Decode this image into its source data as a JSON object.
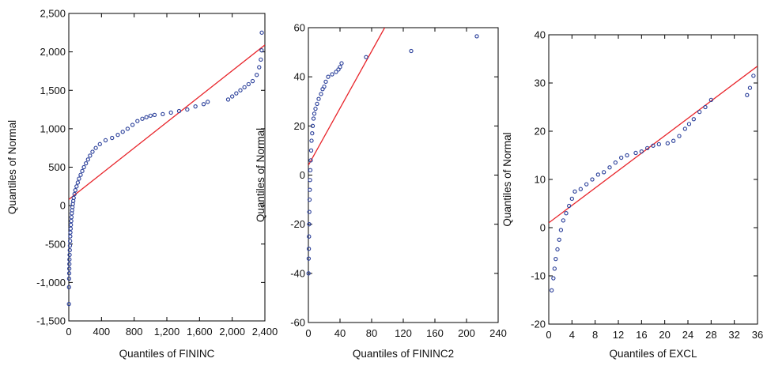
{
  "chart_data": [
    {
      "type": "scatter",
      "title": "",
      "xlabel": "Quantiles of FININC",
      "ylabel": "Quantiles of Normal",
      "xlim": [
        0,
        2400
      ],
      "ylim": [
        -1500,
        2500
      ],
      "xticks": [
        "0",
        "400",
        "800",
        "1,200",
        "1,600",
        "2,000",
        "2,400"
      ],
      "xtick_values": [
        0,
        400,
        800,
        1200,
        1600,
        2000,
        2400
      ],
      "yticks": [
        "-1,500",
        "-1,000",
        "-500",
        "0",
        "500",
        "1,000",
        "1,500",
        "2,000",
        "2,500"
      ],
      "ytick_values": [
        -1500,
        -1000,
        -500,
        0,
        500,
        1000,
        1500,
        2000,
        2500
      ],
      "point_color": "#2a3f9a",
      "line_color": "#e8242a",
      "reference_line": [
        [
          0,
          80
        ],
        [
          2400,
          2090
        ]
      ],
      "points": [
        [
          2,
          -1280
        ],
        [
          3,
          -1060
        ],
        [
          4,
          -950
        ],
        [
          5,
          -880
        ],
        [
          6,
          -820
        ],
        [
          7,
          -760
        ],
        [
          8,
          -700
        ],
        [
          10,
          -640
        ],
        [
          12,
          -580
        ],
        [
          14,
          -520
        ],
        [
          16,
          -460
        ],
        [
          18,
          -400
        ],
        [
          20,
          -350
        ],
        [
          23,
          -300
        ],
        [
          26,
          -250
        ],
        [
          30,
          -200
        ],
        [
          33,
          -150
        ],
        [
          37,
          -100
        ],
        [
          41,
          -60
        ],
        [
          45,
          -20
        ],
        [
          50,
          20
        ],
        [
          55,
          60
        ],
        [
          60,
          100
        ],
        [
          70,
          150
        ],
        [
          80,
          200
        ],
        [
          95,
          250
        ],
        [
          110,
          300
        ],
        [
          125,
          350
        ],
        [
          145,
          400
        ],
        [
          165,
          450
        ],
        [
          185,
          500
        ],
        [
          210,
          550
        ],
        [
          235,
          600
        ],
        [
          260,
          650
        ],
        [
          290,
          700
        ],
        [
          330,
          750
        ],
        [
          380,
          800
        ],
        [
          450,
          850
        ],
        [
          530,
          880
        ],
        [
          600,
          920
        ],
        [
          660,
          960
        ],
        [
          720,
          1000
        ],
        [
          780,
          1050
        ],
        [
          840,
          1100
        ],
        [
          900,
          1130
        ],
        [
          950,
          1150
        ],
        [
          1000,
          1170
        ],
        [
          1050,
          1180
        ],
        [
          1150,
          1190
        ],
        [
          1250,
          1210
        ],
        [
          1350,
          1230
        ],
        [
          1450,
          1250
        ],
        [
          1550,
          1290
        ],
        [
          1650,
          1320
        ],
        [
          1700,
          1350
        ],
        [
          1950,
          1380
        ],
        [
          2000,
          1420
        ],
        [
          2050,
          1460
        ],
        [
          2100,
          1500
        ],
        [
          2150,
          1540
        ],
        [
          2200,
          1580
        ],
        [
          2250,
          1620
        ],
        [
          2300,
          1700
        ],
        [
          2330,
          1800
        ],
        [
          2350,
          1900
        ],
        [
          2360,
          2020
        ],
        [
          2362,
          2250
        ]
      ]
    },
    {
      "type": "scatter",
      "title": "",
      "xlabel": "Quantiles of FININC2",
      "ylabel": "Quantiles of Normal",
      "xlim": [
        0,
        240
      ],
      "ylim": [
        -60,
        60
      ],
      "xticks": [
        "0",
        "40",
        "80",
        "120",
        "160",
        "200",
        "240"
      ],
      "xtick_values": [
        0,
        40,
        80,
        120,
        160,
        200,
        240
      ],
      "yticks": [
        "-60",
        "-40",
        "-20",
        "0",
        "20",
        "40",
        "60"
      ],
      "ytick_values": [
        -60,
        -40,
        -20,
        0,
        20,
        40,
        60
      ],
      "point_color": "#2a3f9a",
      "line_color": "#e8242a",
      "reference_line": [
        [
          0,
          4
        ],
        [
          96.5,
          60
        ]
      ],
      "points": [
        [
          0.2,
          -40
        ],
        [
          0.4,
          -34
        ],
        [
          0.6,
          -30
        ],
        [
          0.8,
          -25
        ],
        [
          1.0,
          -20
        ],
        [
          1.2,
          -15
        ],
        [
          1.5,
          -10
        ],
        [
          1.8,
          -6
        ],
        [
          2.1,
          -2
        ],
        [
          2.5,
          2
        ],
        [
          3.0,
          6
        ],
        [
          3.5,
          10
        ],
        [
          4.0,
          14
        ],
        [
          4.8,
          17
        ],
        [
          5.5,
          20
        ],
        [
          6.5,
          23
        ],
        [
          7.5,
          25
        ],
        [
          9.0,
          27
        ],
        [
          11,
          29
        ],
        [
          13,
          31
        ],
        [
          16,
          33
        ],
        [
          18,
          35
        ],
        [
          20,
          36
        ],
        [
          22,
          38
        ],
        [
          25,
          40
        ],
        [
          30,
          41
        ],
        [
          35,
          42
        ],
        [
          38,
          43
        ],
        [
          40,
          44
        ],
        [
          42,
          45.5
        ],
        [
          73,
          48
        ],
        [
          130,
          50.5
        ],
        [
          213,
          56.5
        ]
      ]
    },
    {
      "type": "scatter",
      "title": "",
      "xlabel": "Quantiles of EXCL",
      "ylabel": "Quantiles of Normal",
      "xlim": [
        0,
        36
      ],
      "ylim": [
        -20,
        40
      ],
      "xticks": [
        "0",
        "4",
        "8",
        "12",
        "16",
        "20",
        "24",
        "28",
        "32",
        "36"
      ],
      "xtick_values": [
        0,
        4,
        8,
        12,
        16,
        20,
        24,
        28,
        32,
        36
      ],
      "yticks": [
        "-20",
        "-10",
        "0",
        "10",
        "20",
        "30",
        "40"
      ],
      "ytick_values": [
        -20,
        -10,
        0,
        10,
        20,
        30,
        40
      ],
      "point_color": "#2a3f9a",
      "line_color": "#e8242a",
      "reference_line": [
        [
          0,
          1
        ],
        [
          36,
          33.5
        ]
      ],
      "points": [
        [
          0.5,
          -13
        ],
        [
          0.8,
          -10.5
        ],
        [
          1.0,
          -8.5
        ],
        [
          1.2,
          -6.5
        ],
        [
          1.5,
          -4.5
        ],
        [
          1.8,
          -2.5
        ],
        [
          2.1,
          -0.5
        ],
        [
          2.5,
          1.5
        ],
        [
          3.0,
          3
        ],
        [
          3.5,
          4.5
        ],
        [
          4.0,
          6
        ],
        [
          4.5,
          7.5
        ],
        [
          5.5,
          8
        ],
        [
          6.5,
          9
        ],
        [
          7.5,
          10
        ],
        [
          8.5,
          11
        ],
        [
          9.5,
          11.5
        ],
        [
          10.5,
          12.5
        ],
        [
          11.5,
          13.5
        ],
        [
          12.5,
          14.5
        ],
        [
          13.5,
          15
        ],
        [
          15,
          15.5
        ],
        [
          16,
          15.8
        ],
        [
          17,
          16.5
        ],
        [
          18,
          17
        ],
        [
          19,
          17.3
        ],
        [
          20.5,
          17.5
        ],
        [
          21.5,
          18
        ],
        [
          22.5,
          19
        ],
        [
          23.5,
          20.5
        ],
        [
          24.2,
          21.5
        ],
        [
          25,
          22.5
        ],
        [
          26,
          24
        ],
        [
          27,
          25
        ],
        [
          28,
          26.5
        ],
        [
          34.2,
          27.5
        ],
        [
          34.7,
          29
        ],
        [
          35.3,
          31.5
        ]
      ]
    }
  ]
}
